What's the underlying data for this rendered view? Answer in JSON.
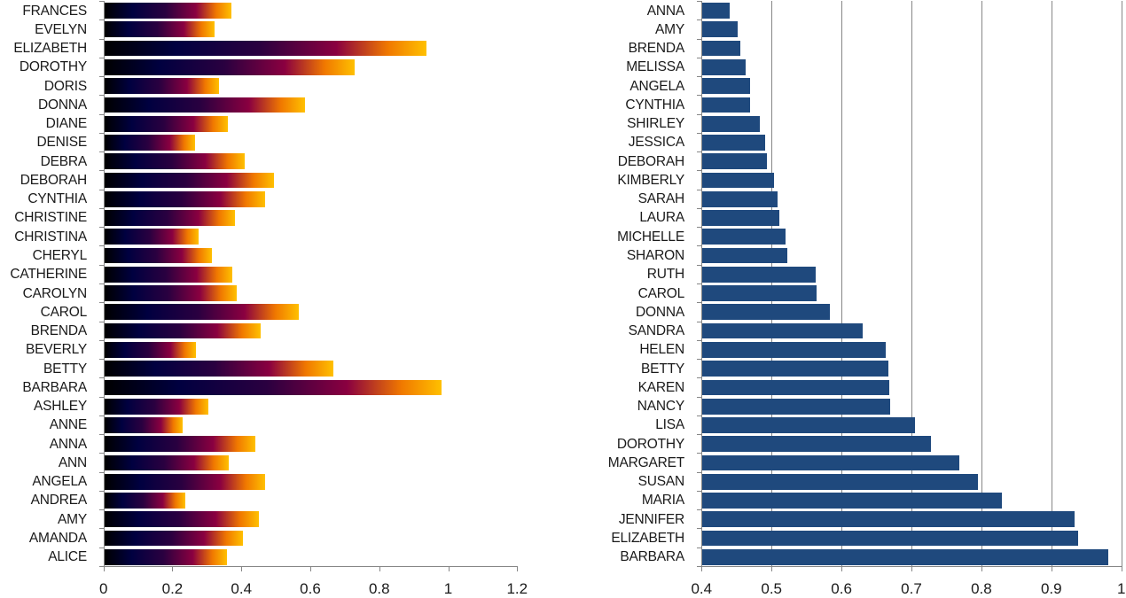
{
  "chart_data": [
    {
      "type": "bar",
      "orientation": "horizontal",
      "title": "",
      "xlabel": "",
      "ylabel": "",
      "xlim": [
        0,
        1.2
      ],
      "x_ticks": [
        "0",
        "0.2",
        "0.4",
        "0.6",
        "0.8",
        "1",
        "1.2"
      ],
      "grid": false,
      "legend": false,
      "bar_fill": "gradient (black → navy → purple → crimson → orange → gold)",
      "gradient_colors": [
        "#000000",
        "#000040",
        "#2a0040",
        "#8a0040",
        "#f07800",
        "#ffc000"
      ],
      "categories": [
        "FRANCES",
        "EVELYN",
        "ELIZABETH",
        "DOROTHY",
        "DORIS",
        "DONNA",
        "DIANE",
        "DENISE",
        "DEBRA",
        "DEBORAH",
        "CYNTHIA",
        "CHRISTINE",
        "CHRISTINA",
        "CHERYL",
        "CATHERINE",
        "CAROLYN",
        "CAROL",
        "BRENDA",
        "BEVERLY",
        "BETTY",
        "BARBARA",
        "ASHLEY",
        "ANNE",
        "ANNA",
        "ANN",
        "ANGELA",
        "ANDREA",
        "AMY",
        "AMANDA",
        "ALICE"
      ],
      "values": [
        0.371,
        0.322,
        0.936,
        0.728,
        0.335,
        0.584,
        0.361,
        0.266,
        0.409,
        0.494,
        0.469,
        0.381,
        0.276,
        0.314,
        0.374,
        0.386,
        0.566,
        0.456,
        0.268,
        0.667,
        0.98,
        0.304,
        0.229,
        0.44,
        0.363,
        0.469,
        0.237,
        0.451,
        0.404,
        0.358
      ]
    },
    {
      "type": "bar",
      "orientation": "horizontal",
      "title": "",
      "xlabel": "",
      "ylabel": "",
      "xlim": [
        0.4,
        1.0
      ],
      "x_ticks": [
        "0.4",
        "0.5",
        "0.6",
        "0.7",
        "0.8",
        "0.9",
        "1"
      ],
      "grid": true,
      "legend": false,
      "bar_color": "#1f497d",
      "categories": [
        "ANNA",
        "AMY",
        "BRENDA",
        "MELISSA",
        "ANGELA",
        "CYNTHIA",
        "SHIRLEY",
        "JESSICA",
        "DEBORAH",
        "KIMBERLY",
        "SARAH",
        "LAURA",
        "MICHELLE",
        "SHARON",
        "RUTH",
        "CAROL",
        "DONNA",
        "SANDRA",
        "HELEN",
        "BETTY",
        "KAREN",
        "NANCY",
        "LISA",
        "DOROTHY",
        "MARGARET",
        "SUSAN",
        "MARIA",
        "JENNIFER",
        "ELIZABETH",
        "BARBARA"
      ],
      "values": [
        0.44,
        0.452,
        0.455,
        0.463,
        0.469,
        0.469,
        0.483,
        0.491,
        0.494,
        0.504,
        0.508,
        0.511,
        0.52,
        0.522,
        0.563,
        0.565,
        0.583,
        0.63,
        0.663,
        0.667,
        0.668,
        0.669,
        0.705,
        0.728,
        0.768,
        0.795,
        0.829,
        0.933,
        0.938,
        0.981
      ]
    }
  ]
}
